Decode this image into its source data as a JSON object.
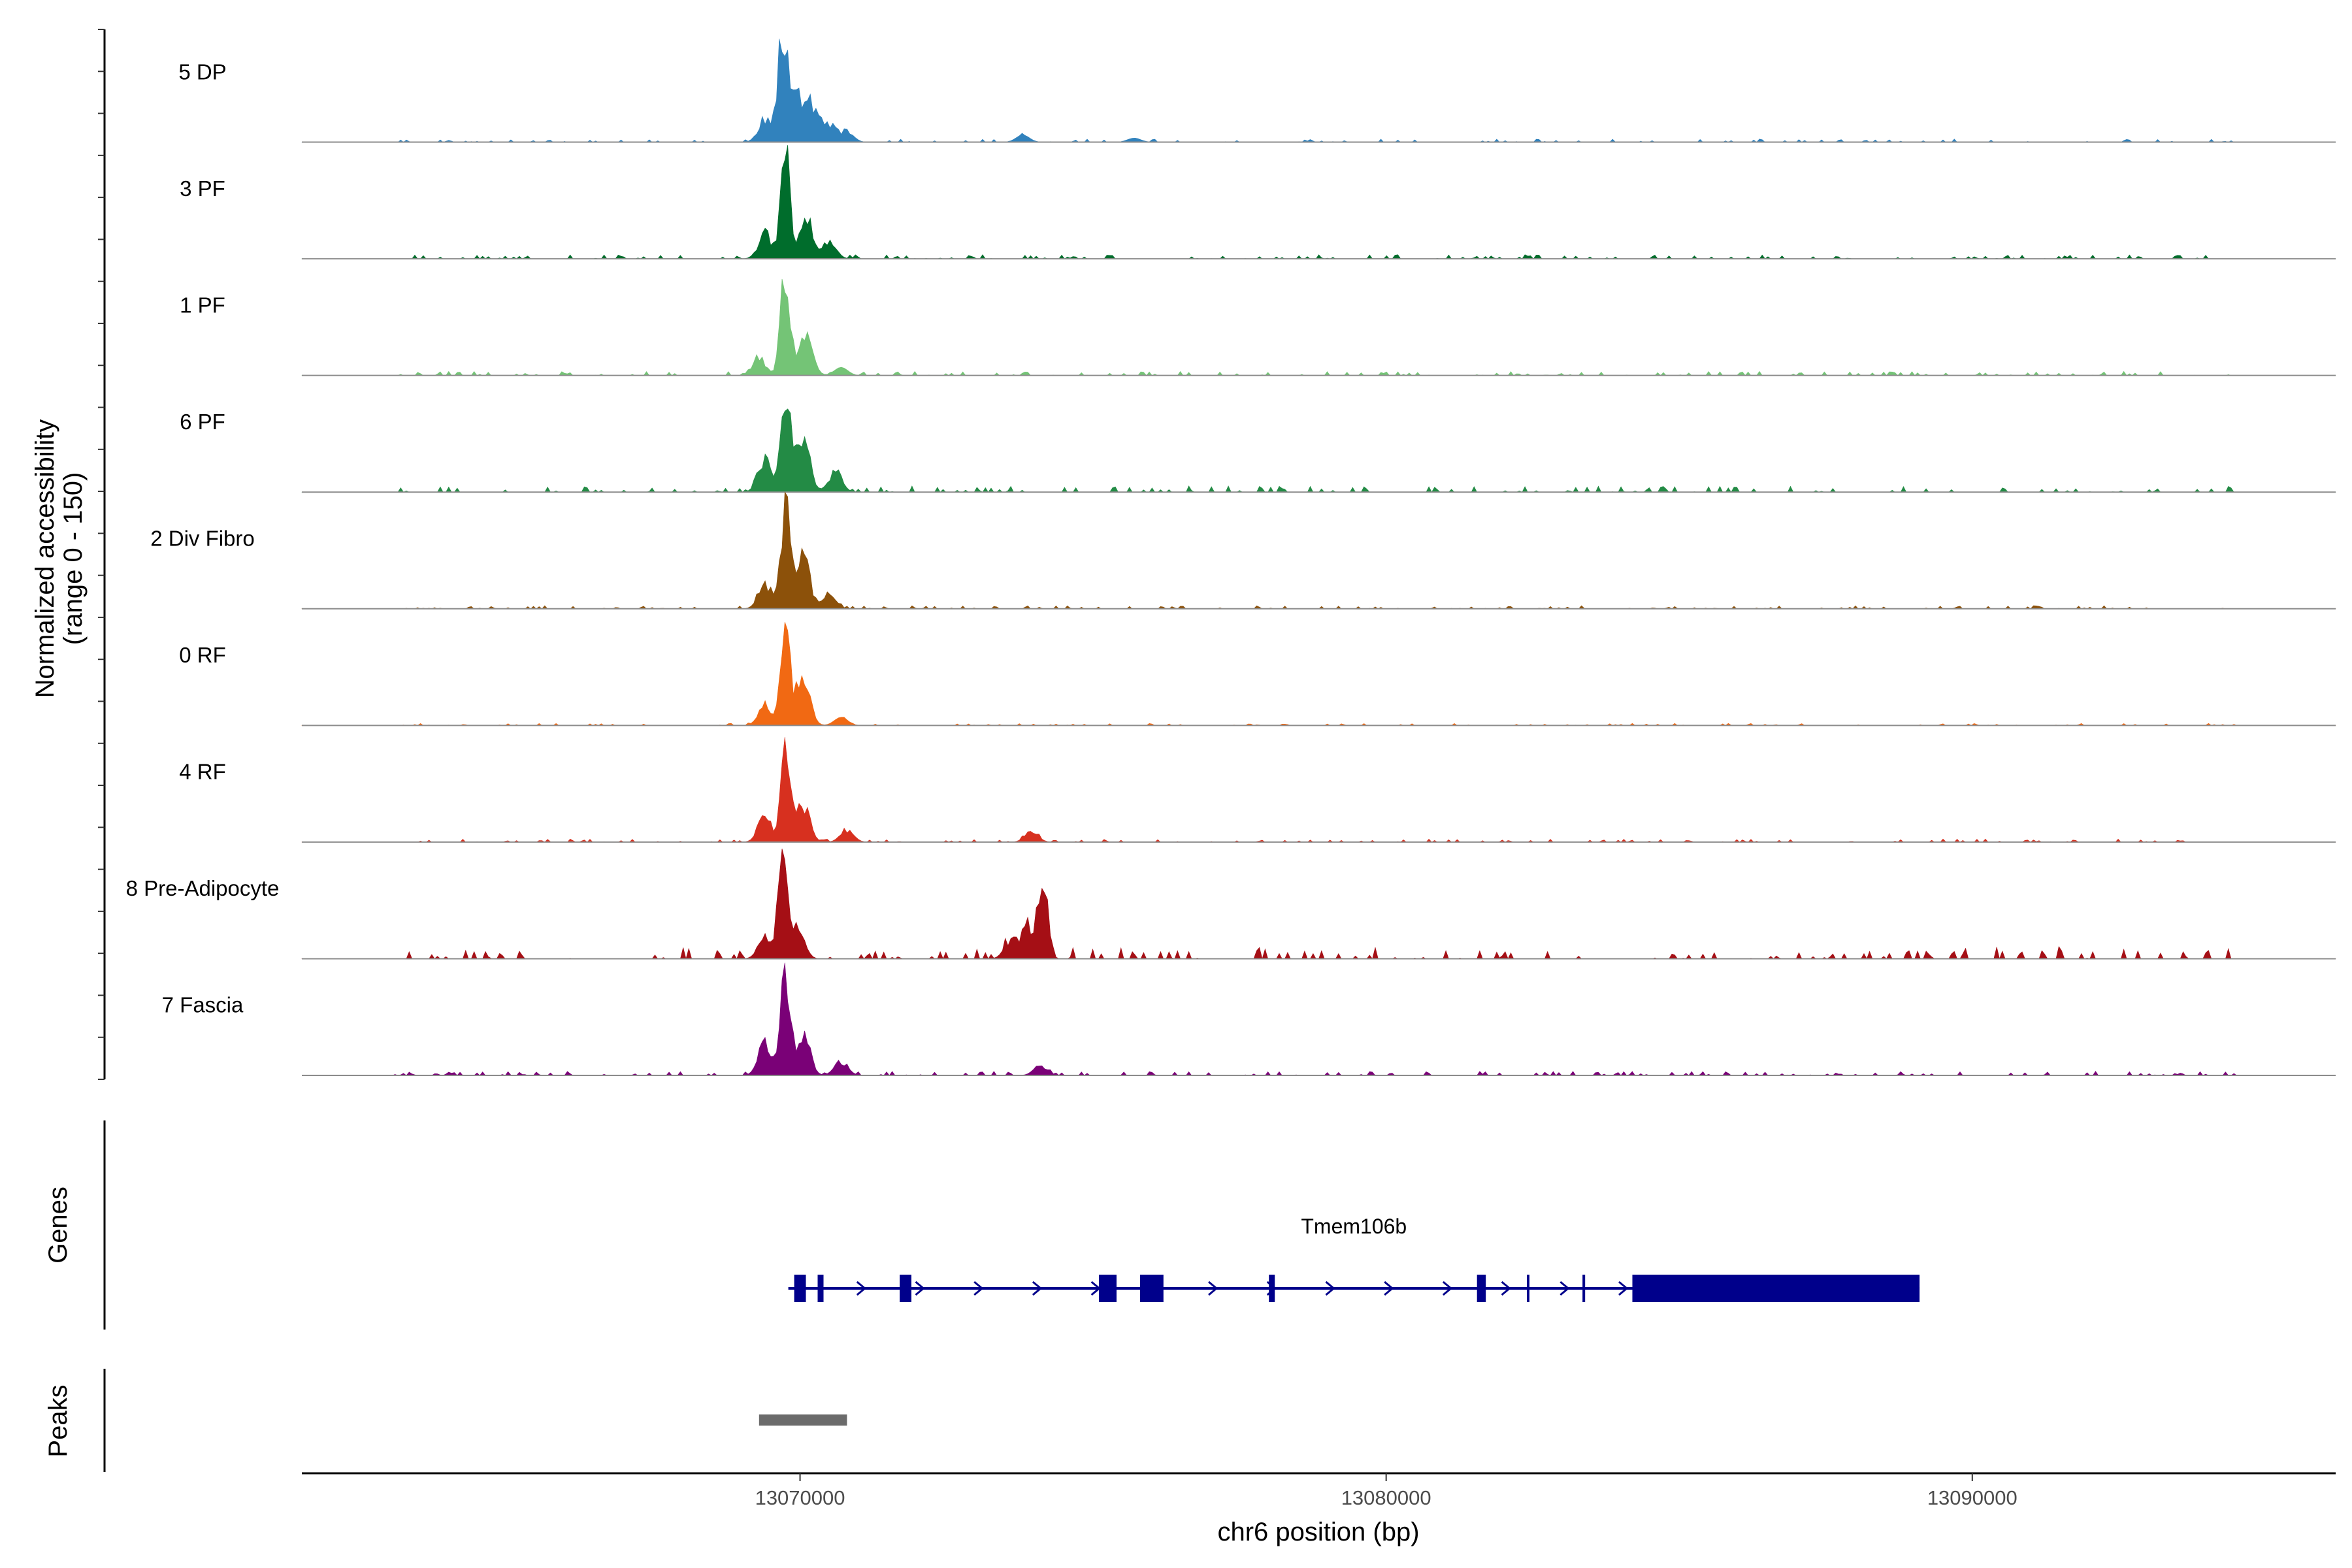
{
  "chart_data": {
    "type": "area",
    "title": "",
    "ylabel": "Normalized accessibility",
    "ylabel_sub": "(range 0 - 150)",
    "xlabel": "chr6 position (bp)",
    "xlim": [
      13061500,
      13096200
    ],
    "ylim": [
      0,
      150
    ],
    "x_ticks": [
      {
        "value": 13070000,
        "label": "13070000"
      },
      {
        "value": 13080000,
        "label": "13080000"
      },
      {
        "value": 13090000,
        "label": "13090000"
      }
    ],
    "tracks": [
      {
        "name": "5 DP",
        "color": "#3182BD",
        "peaks": [
          {
            "x": 13069700,
            "h": 100
          },
          {
            "x": 13069900,
            "h": 54
          },
          {
            "x": 13070200,
            "h": 36
          },
          {
            "x": 13069400,
            "h": 22
          },
          {
            "x": 13070500,
            "h": 16
          },
          {
            "x": 13070800,
            "h": 10
          },
          {
            "x": 13073800,
            "h": 7
          },
          {
            "x": 13075700,
            "h": 4
          }
        ],
        "seed": 11,
        "noise": 3
      },
      {
        "name": "3 PF",
        "color": "#006D2C",
        "peaks": [
          {
            "x": 13069750,
            "h": 100
          },
          {
            "x": 13070100,
            "h": 40
          },
          {
            "x": 13069400,
            "h": 24
          },
          {
            "x": 13070500,
            "h": 18
          }
        ],
        "seed": 23,
        "noise": 4
      },
      {
        "name": "1 PF",
        "color": "#74C476",
        "peaks": [
          {
            "x": 13069750,
            "h": 100
          },
          {
            "x": 13070100,
            "h": 40
          },
          {
            "x": 13069300,
            "h": 18
          },
          {
            "x": 13070700,
            "h": 8
          }
        ],
        "seed": 37,
        "noise": 4
      },
      {
        "name": "6 PF",
        "color": "#238B45",
        "peaks": [
          {
            "x": 13069750,
            "h": 100
          },
          {
            "x": 13070050,
            "h": 55
          },
          {
            "x": 13069400,
            "h": 32
          },
          {
            "x": 13070600,
            "h": 20
          }
        ],
        "seed": 41,
        "noise": 6
      },
      {
        "name": "2 Div Fibro",
        "color": "#8C510A",
        "peaks": [
          {
            "x": 13069750,
            "h": 100
          },
          {
            "x": 13070050,
            "h": 50
          },
          {
            "x": 13069400,
            "h": 22
          },
          {
            "x": 13070500,
            "h": 14
          }
        ],
        "seed": 53,
        "noise": 3
      },
      {
        "name": "0 RF",
        "color": "#F16913",
        "peaks": [
          {
            "x": 13069750,
            "h": 100
          },
          {
            "x": 13070050,
            "h": 48
          },
          {
            "x": 13069400,
            "h": 18
          },
          {
            "x": 13070700,
            "h": 8
          }
        ],
        "seed": 61,
        "noise": 2
      },
      {
        "name": "4 RF",
        "color": "#D7301F",
        "peaks": [
          {
            "x": 13069750,
            "h": 100
          },
          {
            "x": 13070050,
            "h": 36
          },
          {
            "x": 13069400,
            "h": 24
          },
          {
            "x": 13070800,
            "h": 12
          },
          {
            "x": 13073950,
            "h": 10
          }
        ],
        "seed": 71,
        "noise": 3
      },
      {
        "name": "8 Pre-Adipocyte",
        "color": "#A50F15",
        "peaks": [
          {
            "x": 13069700,
            "h": 100
          },
          {
            "x": 13069950,
            "h": 36
          },
          {
            "x": 13069400,
            "h": 20
          },
          {
            "x": 13074150,
            "h": 80
          },
          {
            "x": 13073900,
            "h": 30
          },
          {
            "x": 13073600,
            "h": 18
          }
        ],
        "seed": 83,
        "noise": 10
      },
      {
        "name": "7 Fascia",
        "color": "#7A0177",
        "peaks": [
          {
            "x": 13069750,
            "h": 100
          },
          {
            "x": 13070050,
            "h": 40
          },
          {
            "x": 13069400,
            "h": 30
          },
          {
            "x": 13070700,
            "h": 14
          },
          {
            "x": 13074100,
            "h": 10
          }
        ],
        "seed": 97,
        "noise": 4
      }
    ],
    "genes_track": {
      "title": "Genes",
      "gene_name": "Tmem106b",
      "strand": "+",
      "color": "#00008B",
      "start": 13069800,
      "end": 13089100,
      "exons": [
        [
          13069900,
          13070100
        ],
        [
          13070300,
          13070400
        ],
        [
          13071700,
          13071900
        ],
        [
          13075100,
          13075400
        ],
        [
          13075800,
          13076200
        ],
        [
          13078000,
          13078100
        ],
        [
          13081550,
          13081700
        ],
        [
          13082400,
          13082430
        ],
        [
          13083350,
          13083380
        ],
        [
          13084200,
          13089100
        ]
      ]
    },
    "peaks_track": {
      "title": "Peaks",
      "color": "#6B6B6B",
      "regions": [
        [
          13069300,
          13070800
        ]
      ]
    }
  }
}
